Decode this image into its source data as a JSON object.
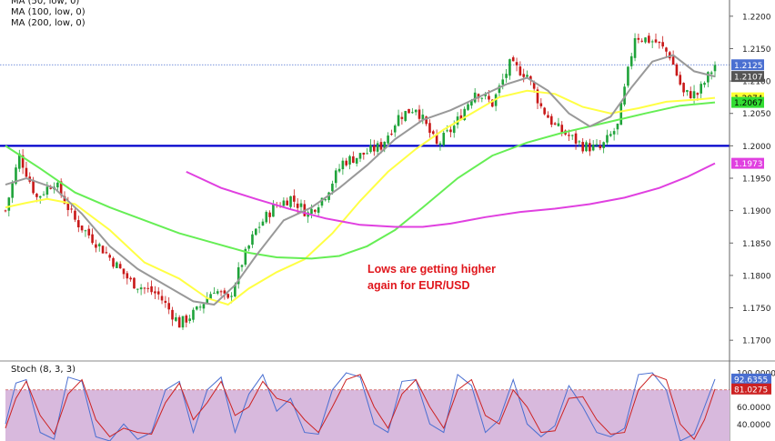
{
  "chart_data": [
    {
      "type": "candlestick",
      "title": "",
      "legend": [
        "MA (50, low, 0)",
        "MA (100, low, 0)",
        "MA (200, low, 0)"
      ],
      "ylim": [
        1.1675,
        1.2225
      ],
      "y_ticks": [
        "1.2200",
        "1.2150",
        "1.2100",
        "1.2050",
        "1.2000",
        "1.1950",
        "1.1900",
        "1.1850",
        "1.1800",
        "1.1750",
        "1.1700"
      ],
      "price_labels": [
        {
          "value": "1.2125",
          "bg": "#4a6fd1",
          "fg": "#ffffff"
        },
        {
          "value": "1.2107",
          "bg": "#555555",
          "fg": "#ffffff"
        },
        {
          "value": "1.2074",
          "bg": "#ffff33",
          "fg": "#000000"
        },
        {
          "value": "1.2067",
          "bg": "#33dd33",
          "fg": "#000000"
        },
        {
          "value": "1.1973",
          "bg": "#e040e0",
          "fg": "#ffffff"
        }
      ],
      "horizontal_line": {
        "value": 1.2,
        "color": "#0000cc"
      },
      "current_price_line": {
        "value": 1.2125,
        "color": "#4a6fd1"
      },
      "annotation": [
        "Lows are getting higher",
        "again for EUR/USD"
      ],
      "close_anchors": [
        [
          0,
          1.19
        ],
        [
          4,
          1.1985
        ],
        [
          9,
          1.192
        ],
        [
          14,
          1.1945
        ],
        [
          20,
          1.1885
        ],
        [
          28,
          1.184
        ],
        [
          36,
          1.179
        ],
        [
          44,
          1.177
        ],
        [
          50,
          1.1725
        ],
        [
          55,
          1.1745
        ],
        [
          60,
          1.178
        ],
        [
          64,
          1.176
        ],
        [
          68,
          1.182
        ],
        [
          72,
          1.187
        ],
        [
          77,
          1.1905
        ],
        [
          82,
          1.192
        ],
        [
          87,
          1.1895
        ],
        [
          92,
          1.1925
        ],
        [
          97,
          1.1975
        ],
        [
          102,
          1.1985
        ],
        [
          108,
          1.2
        ],
        [
          113,
          1.2045
        ],
        [
          118,
          1.206
        ],
        [
          124,
          1.2
        ],
        [
          129,
          1.203
        ],
        [
          135,
          1.2085
        ],
        [
          140,
          1.2065
        ],
        [
          145,
          1.2125
        ],
        [
          150,
          1.211
        ],
        [
          154,
          1.206
        ],
        [
          158,
          1.203
        ],
        [
          162,
          1.2015
        ],
        [
          166,
          1.2
        ],
        [
          171,
          1.1995
        ],
        [
          176,
          1.203
        ],
        [
          181,
          1.217
        ],
        [
          187,
          1.216
        ],
        [
          191,
          1.214
        ],
        [
          195,
          1.208
        ],
        [
          199,
          1.208
        ],
        [
          204,
          1.2125
        ]
      ],
      "moving_averages": [
        {
          "name": "MA (50, low, 0)",
          "color": "#ffff44",
          "points": [
            [
              0,
              1.1905
            ],
            [
              6,
              1.1912
            ],
            [
              12,
              1.1918
            ],
            [
              20,
              1.191
            ],
            [
              30,
              1.187
            ],
            [
              40,
              1.182
            ],
            [
              50,
              1.1795
            ],
            [
              58,
              1.1765
            ],
            [
              64,
              1.1755
            ],
            [
              70,
              1.178
            ],
            [
              78,
              1.1805
            ],
            [
              86,
              1.1825
            ],
            [
              94,
              1.1865
            ],
            [
              102,
              1.1915
            ],
            [
              110,
              1.196
            ],
            [
              118,
              1.1995
            ],
            [
              126,
              1.2025
            ],
            [
              134,
              1.205
            ],
            [
              142,
              1.2075
            ],
            [
              150,
              1.2085
            ],
            [
              158,
              1.208
            ],
            [
              166,
              1.206
            ],
            [
              174,
              1.205
            ],
            [
              182,
              1.2058
            ],
            [
              190,
              1.2068
            ],
            [
              198,
              1.2071
            ],
            [
              204,
              1.2074
            ]
          ]
        },
        {
          "name": "MA (100, low, 0)",
          "color": "#66ee55",
          "points": [
            [
              0,
              1.2
            ],
            [
              10,
              1.1965
            ],
            [
              20,
              1.1928
            ],
            [
              30,
              1.1905
            ],
            [
              40,
              1.1885
            ],
            [
              50,
              1.1865
            ],
            [
              60,
              1.185
            ],
            [
              70,
              1.1835
            ],
            [
              78,
              1.1828
            ],
            [
              88,
              1.1826
            ],
            [
              96,
              1.183
            ],
            [
              104,
              1.1845
            ],
            [
              112,
              1.187
            ],
            [
              120,
              1.1905
            ],
            [
              130,
              1.195
            ],
            [
              140,
              1.1985
            ],
            [
              150,
              1.2005
            ],
            [
              160,
              1.202
            ],
            [
              168,
              1.203
            ],
            [
              176,
              1.204
            ],
            [
              184,
              1.205
            ],
            [
              194,
              1.2062
            ],
            [
              204,
              1.2067
            ]
          ]
        },
        {
          "name": "MA (200, low, 0)",
          "color": "#e040e0",
          "points": [
            [
              52,
              1.196
            ],
            [
              62,
              1.1935
            ],
            [
              72,
              1.1918
            ],
            [
              82,
              1.1902
            ],
            [
              92,
              1.1888
            ],
            [
              102,
              1.1878
            ],
            [
              112,
              1.1875
            ],
            [
              120,
              1.1875
            ],
            [
              128,
              1.188
            ],
            [
              138,
              1.189
            ],
            [
              148,
              1.1898
            ],
            [
              158,
              1.1903
            ],
            [
              168,
              1.191
            ],
            [
              178,
              1.192
            ],
            [
              188,
              1.1935
            ],
            [
              196,
              1.1952
            ],
            [
              204,
              1.1973
            ]
          ]
        },
        {
          "name": "",
          "color": "#999999",
          "points": [
            [
              0,
              1.194
            ],
            [
              6,
              1.195
            ],
            [
              14,
              1.1935
            ],
            [
              22,
              1.1895
            ],
            [
              30,
              1.1845
            ],
            [
              38,
              1.181
            ],
            [
              46,
              1.1785
            ],
            [
              54,
              1.176
            ],
            [
              60,
              1.1755
            ],
            [
              66,
              1.1785
            ],
            [
              72,
              1.183
            ],
            [
              80,
              1.1885
            ],
            [
              88,
              1.1905
            ],
            [
              96,
              1.1935
            ],
            [
              104,
              1.197
            ],
            [
              112,
              1.201
            ],
            [
              120,
              1.204
            ],
            [
              128,
              1.2055
            ],
            [
              136,
              1.2075
            ],
            [
              144,
              1.2095
            ],
            [
              150,
              1.2105
            ],
            [
              156,
              1.2085
            ],
            [
              162,
              1.205
            ],
            [
              168,
              1.203
            ],
            [
              174,
              1.2045
            ],
            [
              180,
              1.209
            ],
            [
              186,
              1.213
            ],
            [
              192,
              1.214
            ],
            [
              198,
              1.2115
            ],
            [
              204,
              1.2107
            ]
          ]
        }
      ]
    },
    {
      "type": "line",
      "title": "Stoch (8, 3, 3)",
      "ylim": [
        20,
        100
      ],
      "y_ticks": [
        "100.0000",
        "80.0000",
        "60.0000",
        "40.0000"
      ],
      "overbought_level": 80,
      "price_labels": [
        {
          "value": "92.6355",
          "bg": "#4a6fd1",
          "fg": "#ffffff"
        },
        {
          "value": "81.0275",
          "bg": "#cc2222",
          "fg": "#ffffff"
        }
      ],
      "series": [
        {
          "name": "",
          "color": "#4a6fd1",
          "points": [
            [
              0,
              40
            ],
            [
              3,
              88
            ],
            [
              6,
              92
            ],
            [
              10,
              30
            ],
            [
              14,
              22
            ],
            [
              18,
              95
            ],
            [
              22,
              90
            ],
            [
              26,
              25
            ],
            [
              30,
              20
            ],
            [
              34,
              40
            ],
            [
              38,
              22
            ],
            [
              42,
              30
            ],
            [
              46,
              80
            ],
            [
              50,
              90
            ],
            [
              54,
              30
            ],
            [
              58,
              80
            ],
            [
              62,
              95
            ],
            [
              66,
              30
            ],
            [
              70,
              75
            ],
            [
              74,
              98
            ],
            [
              78,
              55
            ],
            [
              82,
              70
            ],
            [
              86,
              30
            ],
            [
              90,
              28
            ],
            [
              94,
              80
            ],
            [
              98,
              100
            ],
            [
              102,
              95
            ],
            [
              106,
              40
            ],
            [
              110,
              30
            ],
            [
              114,
              90
            ],
            [
              118,
              92
            ],
            [
              122,
              40
            ],
            [
              126,
              30
            ],
            [
              130,
              98
            ],
            [
              134,
              85
            ],
            [
              138,
              30
            ],
            [
              142,
              45
            ],
            [
              146,
              92
            ],
            [
              150,
              40
            ],
            [
              154,
              25
            ],
            [
              158,
              38
            ],
            [
              162,
              85
            ],
            [
              166,
              60
            ],
            [
              170,
              30
            ],
            [
              174,
              25
            ],
            [
              178,
              35
            ],
            [
              182,
              98
            ],
            [
              186,
              100
            ],
            [
              190,
              80
            ],
            [
              194,
              20
            ],
            [
              198,
              28
            ],
            [
              201,
              60
            ],
            [
              204,
              92.6
            ]
          ]
        },
        {
          "name": "",
          "color": "#cc2222",
          "points": [
            [
              0,
              35
            ],
            [
              3,
              70
            ],
            [
              6,
              90
            ],
            [
              10,
              50
            ],
            [
              14,
              28
            ],
            [
              18,
              75
            ],
            [
              22,
              92
            ],
            [
              26,
              45
            ],
            [
              30,
              25
            ],
            [
              34,
              35
            ],
            [
              38,
              30
            ],
            [
              42,
              28
            ],
            [
              46,
              65
            ],
            [
              50,
              88
            ],
            [
              54,
              45
            ],
            [
              58,
              65
            ],
            [
              62,
              90
            ],
            [
              66,
              50
            ],
            [
              70,
              60
            ],
            [
              74,
              90
            ],
            [
              78,
              70
            ],
            [
              82,
              65
            ],
            [
              86,
              45
            ],
            [
              90,
              30
            ],
            [
              94,
              60
            ],
            [
              98,
              92
            ],
            [
              102,
              98
            ],
            [
              106,
              60
            ],
            [
              110,
              35
            ],
            [
              114,
              75
            ],
            [
              118,
              92
            ],
            [
              122,
              60
            ],
            [
              126,
              35
            ],
            [
              130,
              80
            ],
            [
              134,
              92
            ],
            [
              138,
              50
            ],
            [
              142,
              40
            ],
            [
              146,
              80
            ],
            [
              150,
              60
            ],
            [
              154,
              30
            ],
            [
              158,
              32
            ],
            [
              162,
              70
            ],
            [
              166,
              72
            ],
            [
              170,
              45
            ],
            [
              174,
              28
            ],
            [
              178,
              30
            ],
            [
              182,
              80
            ],
            [
              186,
              98
            ],
            [
              190,
              92
            ],
            [
              194,
              40
            ],
            [
              198,
              22
            ],
            [
              201,
              45
            ],
            [
              204,
              81.0
            ]
          ]
        }
      ]
    }
  ]
}
